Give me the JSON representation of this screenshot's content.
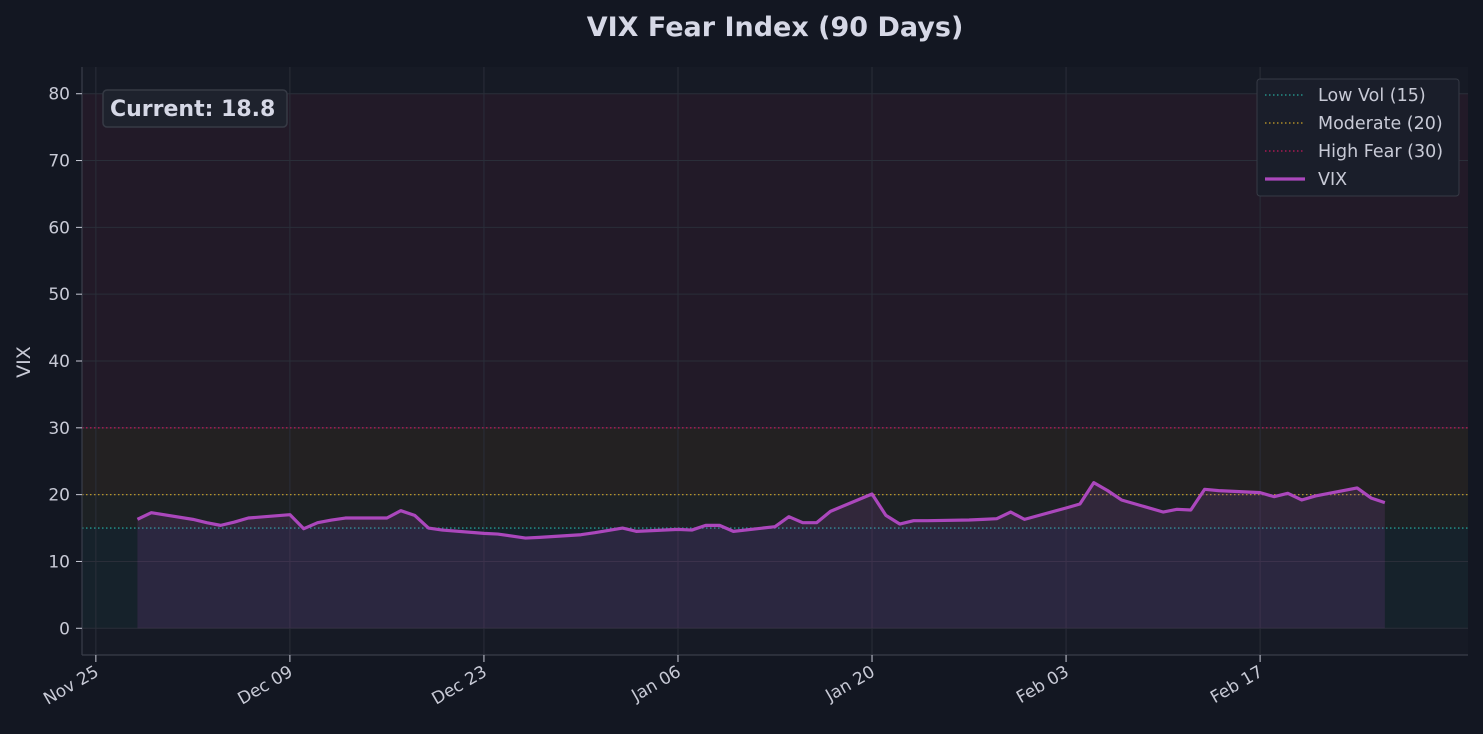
{
  "chart_data": {
    "type": "line",
    "title": "VIX Fear Index (90 Days)",
    "xlabel": "",
    "ylabel": "VIX",
    "ylim": [
      -4,
      84
    ],
    "yticks": [
      0,
      10,
      20,
      30,
      40,
      50,
      60,
      70,
      80
    ],
    "xlim": [
      "2024-11-24",
      "2025-03-04"
    ],
    "xticks": [
      {
        "date": "2024-11-25",
        "label": "Nov 25"
      },
      {
        "date": "2024-12-09",
        "label": "Dec 09"
      },
      {
        "date": "2024-12-23",
        "label": "Dec 23"
      },
      {
        "date": "2025-01-06",
        "label": "Jan 06"
      },
      {
        "date": "2025-01-20",
        "label": "Jan 20"
      },
      {
        "date": "2025-02-03",
        "label": "Feb 03"
      },
      {
        "date": "2025-02-17",
        "label": "Feb 17"
      }
    ],
    "grid": true,
    "legend_placement": "top-right",
    "annotation": "Current: 18.8",
    "bands": [
      {
        "from": 0,
        "to": 15,
        "color": "#26a69a"
      },
      {
        "from": 15,
        "to": 20,
        "color": "#9e9d24"
      },
      {
        "from": 20,
        "to": 30,
        "color": "#ff9800"
      },
      {
        "from": 30,
        "to": 80,
        "color": "#e91e63"
      }
    ],
    "reference_lines": [
      {
        "name": "Low Vol (15)",
        "value": 15,
        "color": "#26a69a"
      },
      {
        "name": "Moderate (20)",
        "value": 20,
        "color": "#c9a227"
      },
      {
        "name": "High Fear (30)",
        "value": 30,
        "color": "#c2185b"
      }
    ],
    "series": [
      {
        "name": "VIX",
        "color": "#ab47bc",
        "x": [
          "2024-11-28",
          "2024-11-29",
          "2024-12-02",
          "2024-12-03",
          "2024-12-04",
          "2024-12-05",
          "2024-12-06",
          "2024-12-09",
          "2024-12-10",
          "2024-12-11",
          "2024-12-12",
          "2024-12-13",
          "2024-12-16",
          "2024-12-17",
          "2024-12-18",
          "2024-12-19",
          "2024-12-20",
          "2024-12-23",
          "2024-12-24",
          "2024-12-26",
          "2024-12-27",
          "2024-12-30",
          "2024-12-31",
          "2025-01-02",
          "2025-01-03",
          "2025-01-06",
          "2025-01-07",
          "2025-01-08",
          "2025-01-09",
          "2025-01-10",
          "2025-01-13",
          "2025-01-14",
          "2025-01-15",
          "2025-01-16",
          "2025-01-17",
          "2025-01-20",
          "2025-01-21",
          "2025-01-22",
          "2025-01-23",
          "2025-01-24",
          "2025-01-27",
          "2025-01-28",
          "2025-01-29",
          "2025-01-30",
          "2025-01-31",
          "2025-02-03",
          "2025-02-04",
          "2025-02-05",
          "2025-02-06",
          "2025-02-07",
          "2025-02-10",
          "2025-02-11",
          "2025-02-12",
          "2025-02-13",
          "2025-02-14",
          "2025-02-17",
          "2025-02-18",
          "2025-02-19",
          "2025-02-20",
          "2025-02-21",
          "2025-02-24",
          "2025-02-25",
          "2025-02-26"
        ],
        "values": [
          16.3,
          17.3,
          16.3,
          15.8,
          15.4,
          15.9,
          16.5,
          17.0,
          14.9,
          15.8,
          16.2,
          16.5,
          16.5,
          17.6,
          16.9,
          15.0,
          14.7,
          14.2,
          14.1,
          13.5,
          13.6,
          14.0,
          14.3,
          15.0,
          14.5,
          14.8,
          14.7,
          15.4,
          15.4,
          14.5,
          15.2,
          16.7,
          15.8,
          15.8,
          17.5,
          20.1,
          16.9,
          15.6,
          16.1,
          16.1,
          16.2,
          16.3,
          16.4,
          17.4,
          16.3,
          18.0,
          18.6,
          21.8,
          20.6,
          19.2,
          17.4,
          17.8,
          17.7,
          20.8,
          20.6,
          20.3,
          19.7,
          20.2,
          19.2,
          19.8,
          21.0,
          19.5,
          18.8
        ]
      }
    ]
  }
}
